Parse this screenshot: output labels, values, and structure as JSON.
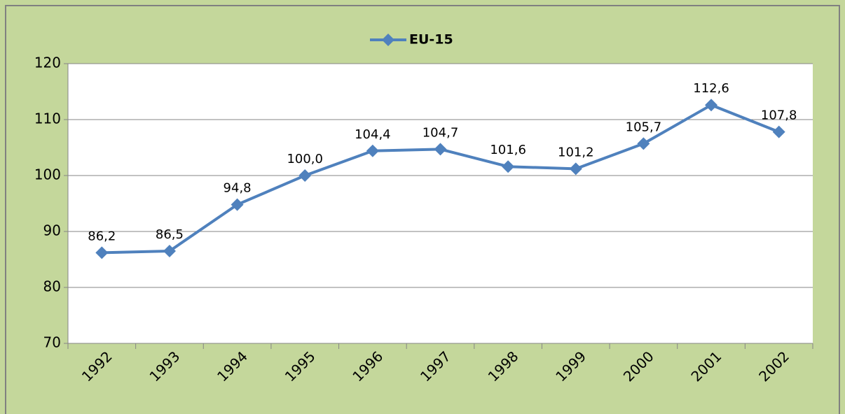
{
  "chart_data": {
    "type": "line",
    "categories": [
      "1992",
      "1993",
      "1994",
      "1995",
      "1996",
      "1997",
      "1998",
      "1999",
      "2000",
      "2001",
      "2002"
    ],
    "series": [
      {
        "name": "EU-15",
        "color": "#4f81bd",
        "values": [
          86.2,
          86.5,
          94.8,
          100.0,
          104.4,
          104.7,
          101.6,
          101.2,
          105.7,
          112.6,
          107.8
        ],
        "value_labels": [
          "86,2",
          "86,5",
          "94,8",
          "100,0",
          "104,4",
          "104,7",
          "101,6",
          "101,2",
          "105,7",
          "112,6",
          "107,8"
        ]
      }
    ],
    "ylim": [
      70,
      120
    ],
    "yticks": [
      70,
      80,
      90,
      100,
      110,
      120
    ],
    "grid": true,
    "legend": "top"
  }
}
